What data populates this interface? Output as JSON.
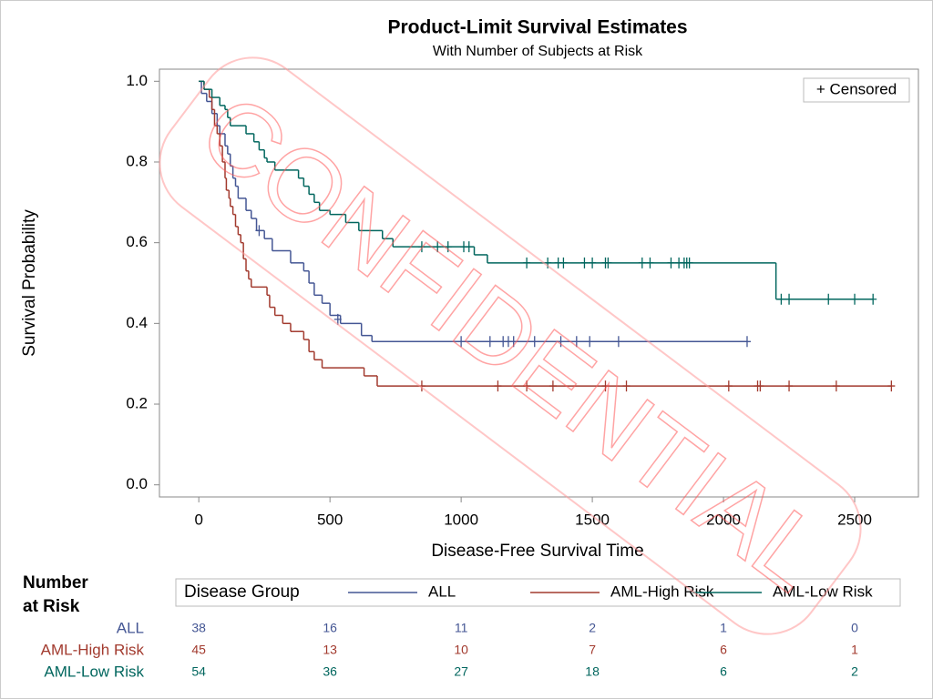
{
  "chart_data": {
    "type": "survival-step",
    "title": "Product-Limit Survival Estimates",
    "subtitle": "With Number of Subjects at Risk",
    "x_label": "Disease-Free Survival Time",
    "y_label": "Survival Probability",
    "xlim": [
      -150,
      2743
    ],
    "ylim": [
      -0.03,
      1.03
    ],
    "xticks": [
      0,
      500,
      1000,
      1500,
      2000,
      2500
    ],
    "yticks": [
      {
        "value": 0,
        "label": "0.0"
      },
      0.2,
      0.4,
      0.6,
      0.8,
      {
        "value": 1,
        "label": "1.0"
      }
    ],
    "censored_legend": "+ Censored",
    "legend_title": "Disease Group",
    "watermark": "CONFIDENTIAL",
    "risk_title": [
      "Number",
      "at Risk"
    ],
    "risk_times": [
      0,
      500,
      1000,
      1500,
      2000,
      2500
    ],
    "series": [
      {
        "name": "ALL",
        "color": "#445694",
        "x": [
          0,
          10,
          30,
          50,
          70,
          80,
          100,
          110,
          120,
          130,
          140,
          150,
          180,
          200,
          220,
          250,
          280,
          350,
          400,
          420,
          440,
          470,
          500,
          540,
          620,
          660
        ],
        "values": [
          1,
          0.97,
          0.95,
          0.92,
          0.89,
          0.87,
          0.84,
          0.82,
          0.79,
          0.76,
          0.74,
          0.71,
          0.68,
          0.66,
          0.63,
          0.61,
          0.58,
          0.55,
          0.53,
          0.5,
          0.47,
          0.45,
          0.42,
          0.4,
          0.37,
          0.355
        ],
        "censored_x": [
          230,
          530,
          1000,
          1110,
          1160,
          1180,
          1200,
          1280,
          1380,
          1440,
          1490,
          1600,
          2090
        ],
        "censored_values": [
          0.63,
          0.41,
          0.355,
          0.355,
          0.355,
          0.355,
          0.355,
          0.355,
          0.355,
          0.355,
          0.355,
          0.355,
          0.355
        ],
        "at_risk": [
          38,
          16,
          11,
          2,
          1,
          0
        ]
      },
      {
        "name": "AML-High Risk",
        "color": "#A23A2E",
        "x": [
          0,
          20,
          40,
          50,
          60,
          70,
          80,
          90,
          100,
          105,
          115,
          120,
          130,
          140,
          150,
          160,
          170,
          180,
          190,
          200,
          260,
          270,
          290,
          320,
          350,
          400,
          420,
          440,
          470,
          630,
          680
        ],
        "values": [
          1,
          0.98,
          0.96,
          0.93,
          0.89,
          0.87,
          0.84,
          0.8,
          0.76,
          0.73,
          0.71,
          0.69,
          0.67,
          0.64,
          0.62,
          0.6,
          0.56,
          0.53,
          0.51,
          0.49,
          0.47,
          0.44,
          0.42,
          0.4,
          0.38,
          0.36,
          0.33,
          0.31,
          0.29,
          0.27,
          0.245
        ],
        "censored_x": [
          850,
          1140,
          1250,
          1350,
          1550,
          1630,
          2020,
          2130,
          2140,
          2250,
          2430,
          2640
        ],
        "censored_values": [
          0.245,
          0.245,
          0.245,
          0.245,
          0.245,
          0.245,
          0.245,
          0.245,
          0.245,
          0.245,
          0.245,
          0.245
        ],
        "at_risk": [
          45,
          13,
          10,
          7,
          6,
          1
        ]
      },
      {
        "name": "AML-Low Risk",
        "color": "#01665E",
        "x": [
          0,
          20,
          50,
          80,
          100,
          110,
          120,
          180,
          210,
          230,
          250,
          260,
          290,
          380,
          400,
          420,
          440,
          460,
          500,
          560,
          610,
          700,
          740,
          1050,
          1100,
          2200
        ],
        "values": [
          1,
          0.98,
          0.96,
          0.94,
          0.93,
          0.91,
          0.89,
          0.87,
          0.85,
          0.83,
          0.81,
          0.8,
          0.78,
          0.76,
          0.74,
          0.72,
          0.7,
          0.68,
          0.67,
          0.65,
          0.63,
          0.61,
          0.59,
          0.57,
          0.55,
          0.46
        ],
        "censored_x": [
          850,
          910,
          950,
          1010,
          1030,
          1250,
          1330,
          1370,
          1390,
          1470,
          1500,
          1550,
          1560,
          1690,
          1720,
          1800,
          1830,
          1850,
          1860,
          1870,
          2220,
          2250,
          2400,
          2500,
          2570
        ],
        "censored_values": [
          0.59,
          0.59,
          0.59,
          0.59,
          0.59,
          0.55,
          0.55,
          0.55,
          0.55,
          0.55,
          0.55,
          0.55,
          0.55,
          0.55,
          0.55,
          0.55,
          0.55,
          0.55,
          0.55,
          0.55,
          0.46,
          0.46,
          0.46,
          0.46,
          0.46
        ],
        "at_risk": [
          54,
          36,
          27,
          18,
          6,
          2
        ]
      }
    ]
  }
}
